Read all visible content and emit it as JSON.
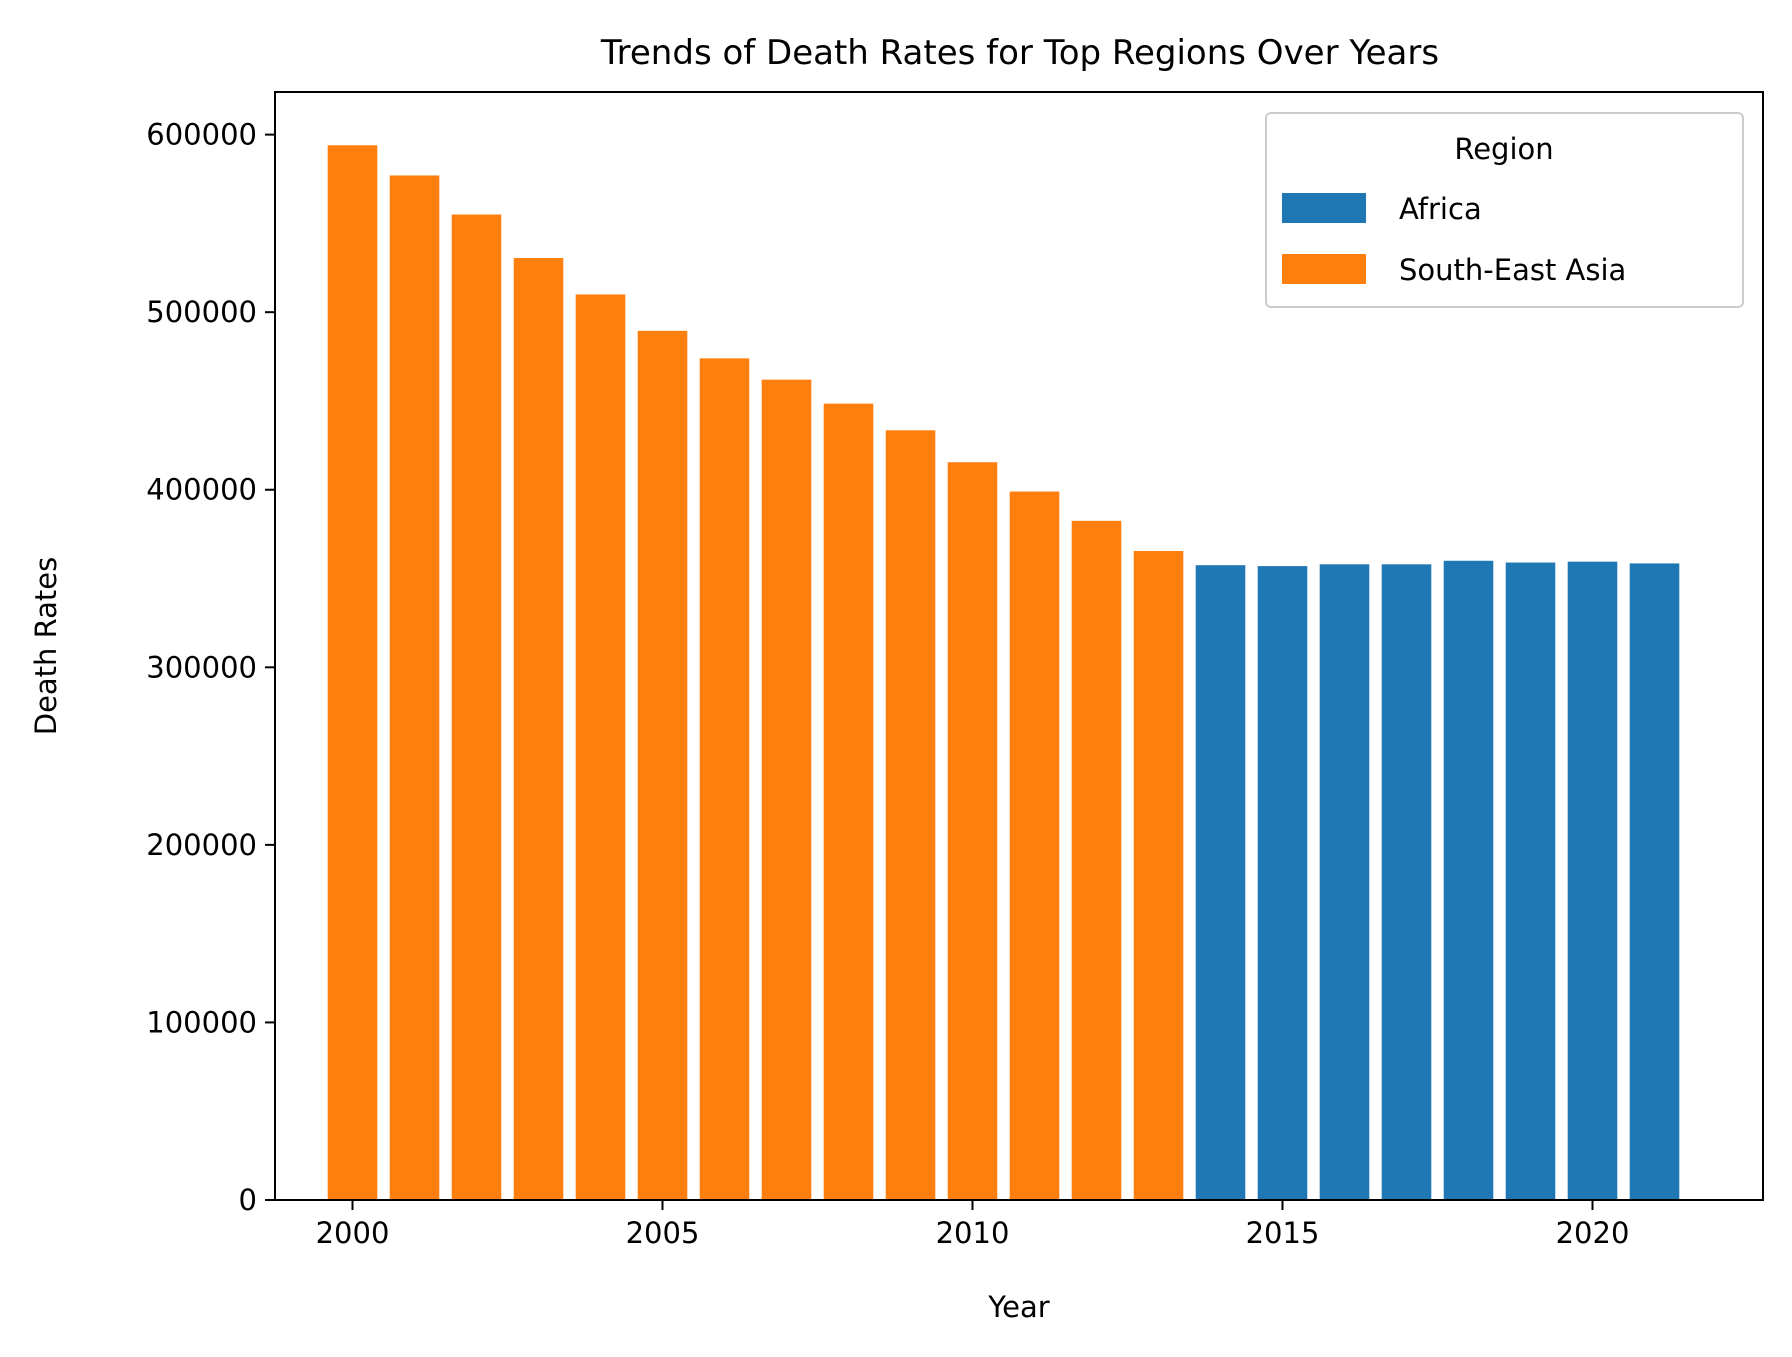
{
  "chart_data": {
    "type": "bar",
    "title": "Trends of Death Rates for Top Regions Over Years",
    "xlabel": "Year",
    "ylabel": "Death Rates",
    "xlim": [
      1998.75,
      2022.75
    ],
    "ylim": [
      0,
      624000
    ],
    "xticks": [
      2000,
      2005,
      2010,
      2015,
      2020
    ],
    "yticks": [
      0,
      100000,
      200000,
      300000,
      400000,
      500000,
      600000
    ],
    "grid": false,
    "legend": {
      "title": "Region",
      "placement": "top-right",
      "entries": [
        {
          "name": "Africa",
          "color": "#1f77b4"
        },
        {
          "name": "South-East Asia",
          "color": "#ff7f0e"
        }
      ]
    },
    "bar_width": 0.8,
    "series": [
      {
        "name": "South-East Asia",
        "color": "#ff7f0e",
        "x": [
          2000,
          2001,
          2002,
          2003,
          2004,
          2005,
          2006,
          2007,
          2008,
          2009,
          2010,
          2011,
          2012,
          2013
        ],
        "values": [
          594000,
          577000,
          555000,
          530500,
          510000,
          489500,
          474000,
          462000,
          448500,
          433500,
          415500,
          399000,
          382500,
          365500
        ]
      },
      {
        "name": "Africa",
        "color": "#1f77b4",
        "x": [
          2014,
          2015,
          2016,
          2017,
          2018,
          2019,
          2020,
          2021
        ],
        "values": [
          357500,
          357000,
          358000,
          358000,
          360000,
          359000,
          359500,
          358500
        ]
      }
    ]
  }
}
